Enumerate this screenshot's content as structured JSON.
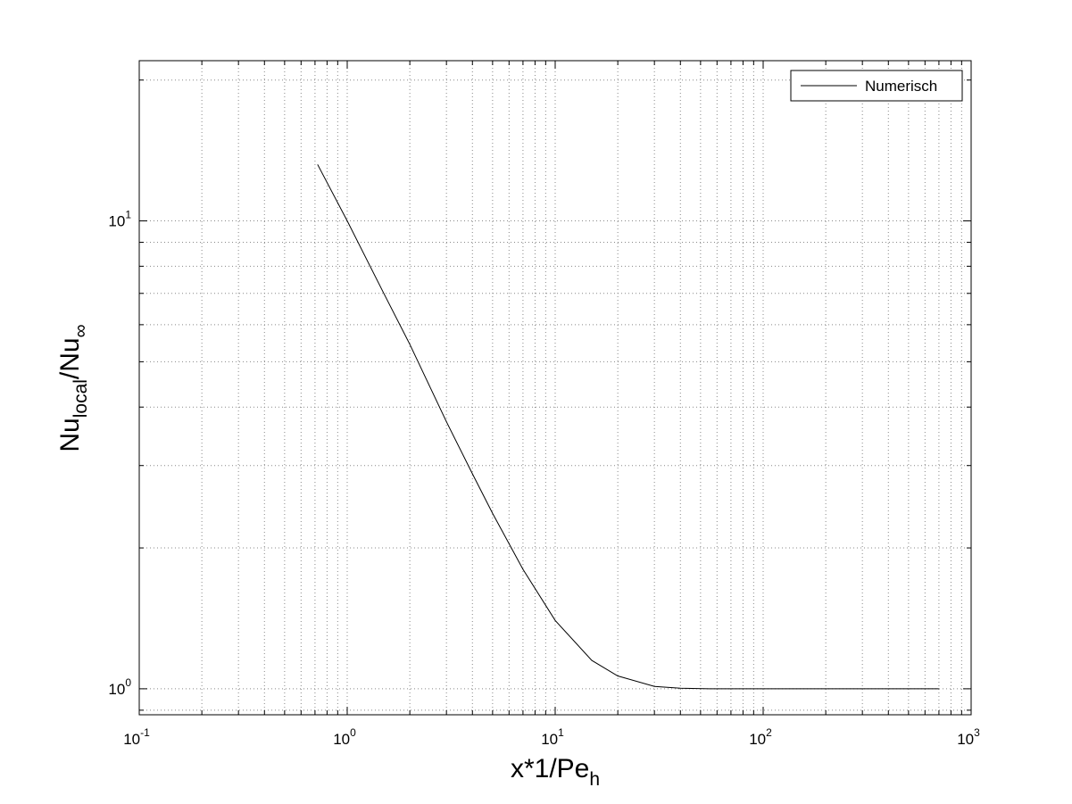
{
  "chart_data": {
    "type": "line",
    "x_scale": "log",
    "y_scale": "log",
    "xlim": [
      0.1,
      1000
    ],
    "ylim": [
      0.88,
      22
    ],
    "grid": true,
    "legend_position": "top-right",
    "x_tick_labels": [
      {
        "base": "10",
        "exp": "-1",
        "value": 0.1
      },
      {
        "base": "10",
        "exp": "0",
        "value": 1
      },
      {
        "base": "10",
        "exp": "1",
        "value": 10
      },
      {
        "base": "10",
        "exp": "2",
        "value": 100
      },
      {
        "base": "10",
        "exp": "3",
        "value": 1000
      }
    ],
    "y_tick_labels": [
      {
        "base": "10",
        "exp": "0",
        "value": 1
      },
      {
        "base": "10",
        "exp": "1",
        "value": 10
      }
    ],
    "xlabel": {
      "main": "x*1/Pe",
      "sub": "h"
    },
    "ylabel": {
      "part1": "Nu",
      "sub1": "local",
      "part2": "/Nu",
      "sub2": "∞"
    },
    "series": [
      {
        "name": "Numerisch",
        "color": "#000000",
        "x": [
          0.72,
          1.0,
          1.5,
          2.0,
          3.0,
          4.0,
          5.0,
          7.0,
          10.0,
          15.0,
          20.0,
          30.0,
          40.0,
          55.0,
          100.0,
          200.0,
          400.0,
          700.0
        ],
        "y": [
          13.2,
          10.0,
          7.0,
          5.45,
          3.72,
          2.88,
          2.37,
          1.8,
          1.4,
          1.15,
          1.065,
          1.012,
          1.003,
          1.0,
          1.0,
          1.0,
          1.0,
          1.0
        ]
      }
    ]
  }
}
